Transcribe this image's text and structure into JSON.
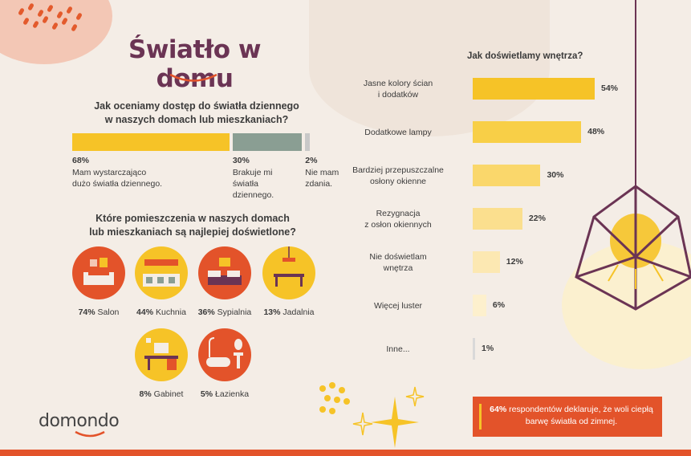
{
  "title": "Światło w domu",
  "question1": {
    "line1": "Jak oceniamy dostęp do światła dziennego",
    "line2": "w naszych domach lub mieszkaniach?",
    "segments": [
      {
        "pct": "68%",
        "label": [
          "Mam wystarczająco",
          "dużo światła dziennego."
        ],
        "value": 68,
        "color": "#f6c327"
      },
      {
        "pct": "30%",
        "label": [
          "Brakuje mi",
          "światła",
          "dziennego."
        ],
        "value": 30,
        "color": "#8a9e93"
      },
      {
        "pct": "2%",
        "label": [
          "Nie mam",
          "zdania."
        ],
        "value": 2,
        "color": "#c8c8c8"
      }
    ]
  },
  "question2": {
    "line1": "Które pomieszczenia w naszych domach",
    "line2": "lub mieszkaniach są najlepiej doświetlone?",
    "rooms": [
      {
        "pct": "74%",
        "name": "Salon",
        "bg": "#e3532a",
        "icon": "living-room-icon"
      },
      {
        "pct": "44%",
        "name": "Kuchnia",
        "bg": "#f6c327",
        "icon": "kitchen-icon"
      },
      {
        "pct": "36%",
        "name": "Sypialnia",
        "bg": "#e3532a",
        "icon": "bedroom-icon"
      },
      {
        "pct": "13%",
        "name": "Jadalnia",
        "bg": "#f6c327",
        "icon": "dining-room-icon"
      },
      {
        "pct": "8%",
        "name": "Gabinet",
        "bg": "#f6c327",
        "icon": "office-icon"
      },
      {
        "pct": "5%",
        "name": "Łazienka",
        "bg": "#e3532a",
        "icon": "bathroom-icon"
      }
    ]
  },
  "chart_data": {
    "type": "bar",
    "orientation": "horizontal",
    "title": "Jak doświetlamy wnętrza?",
    "categories": [
      [
        "Jasne kolory ścian",
        "i dodatków"
      ],
      [
        "Dodatkowe lampy"
      ],
      [
        "Bardziej przepuszczalne",
        "osłony okienne"
      ],
      [
        "Rezygnacja",
        "z osłon okiennych"
      ],
      [
        "Nie doświetlam",
        "wnętrza"
      ],
      [
        "Więcej luster"
      ],
      [
        "Inne..."
      ]
    ],
    "values": [
      54,
      48,
      30,
      22,
      12,
      6,
      1
    ],
    "labels": [
      "54%",
      "48%",
      "30%",
      "22%",
      "12%",
      "6%",
      "1%"
    ],
    "colors": [
      "#f6c327",
      "#f8cf47",
      "#fad76b",
      "#fbdf8e",
      "#fce8b2",
      "#fdf0cd",
      "#d9d9d9"
    ],
    "xlim": [
      0,
      54
    ]
  },
  "callout": {
    "bold": "64%",
    "rest": " respondentów deklaruje, że woli ciepłą barwę światła od zimnej."
  },
  "logo": "domondo",
  "colors": {
    "accent": "#e3532a",
    "yellow": "#f6c327",
    "title": "#6b3454",
    "background": "#f4ede6"
  }
}
